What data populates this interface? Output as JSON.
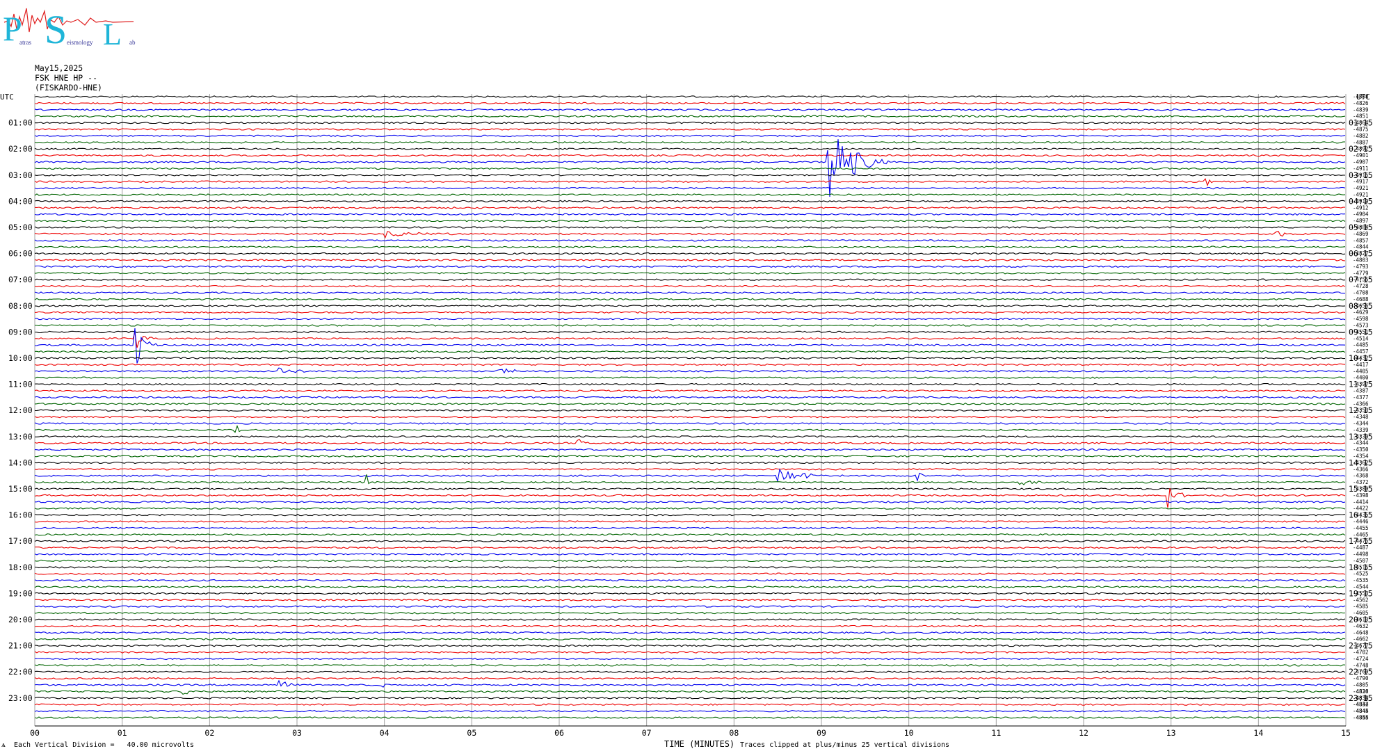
{
  "logo": {
    "big_letters": [
      "P",
      "S",
      "L"
    ],
    "small_words": [
      "atras",
      "eismology",
      "ab"
    ],
    "colors": {
      "letters": "#1fb5d8",
      "squiggle": "#e02020"
    }
  },
  "header": {
    "date": "May15,2025",
    "channel": "FSK HNE HP --",
    "station": "(FISKARDO-HNE)"
  },
  "footer": {
    "corner_mark": "ѧ",
    "vertical_division": "Each Vertical Division =   40.00 microvolts",
    "x_axis_label": "TIME (MINUTES)",
    "clip_note": "Traces clipped at plus/minus 25 vertical divisions"
  },
  "chart_data": {
    "type": "line",
    "title": "",
    "xlabel": "TIME (MINUTES)",
    "ylabel": "",
    "xlim": [
      0,
      15
    ],
    "x_ticks": [
      "00",
      "01",
      "02",
      "03",
      "04",
      "05",
      "06",
      "07",
      "08",
      "09",
      "10",
      "11",
      "12",
      "13",
      "14",
      "15"
    ],
    "grid": true,
    "left_axis_title": "UTC",
    "right_axis_title": "UTC",
    "left_hour_labels": [
      "01:00",
      "02:00",
      "03:00",
      "04:00",
      "05:00",
      "06:00",
      "07:00",
      "08:00",
      "09:00",
      "10:00",
      "11:00",
      "12:00",
      "13:00",
      "14:00",
      "15:00",
      "16:00",
      "17:00",
      "18:00",
      "19:00",
      "20:00",
      "21:00",
      "22:00",
      "23:00"
    ],
    "right_hour_labels": [
      "01:15",
      "02:15",
      "03:15",
      "04:15",
      "05:15",
      "06:15",
      "07:15",
      "08:15",
      "09:15",
      "10:15",
      "11:15",
      "12:15",
      "13:15",
      "14:15",
      "15:15",
      "16:15",
      "17:15",
      "18:15",
      "19:15",
      "20:15",
      "21:15",
      "22:15",
      "23:15"
    ],
    "trace_count": 96,
    "trace_colors": [
      "#000000",
      "#ee0000",
      "#0000ee",
      "#006400"
    ],
    "trace_offsets": [
      "-4808",
      "-4826",
      "-4839",
      "-4851",
      "-4864",
      "-4875",
      "-4882",
      "-4887",
      "-4892",
      "-4901",
      "-4907",
      "-4911",
      "-4915",
      "-4917",
      "-4921",
      "-4921",
      "-4919",
      "-4912",
      "-4904",
      "-4897",
      "-4884",
      "-4869",
      "-4857",
      "-4844",
      "-4827",
      "-4803",
      "-4793",
      "-4779",
      "-4755",
      "-4728",
      "-4708",
      "-4688",
      "-4656",
      "-4629",
      "-4598",
      "-4573",
      "-4551",
      "-4514",
      "-4485",
      "-4457",
      "-4432",
      "-4417",
      "-4405",
      "-4400",
      "-4397",
      "-4387",
      "-4377",
      "-4366",
      "-4353",
      "-4348",
      "-4344",
      "-4339",
      "-4339",
      "-4344",
      "-4350",
      "-4354",
      "-4362",
      "-4366",
      "-4368",
      "-4372",
      "-4380",
      "-4398",
      "-4414",
      "-4422",
      "-4435",
      "-4446",
      "-4455",
      "-4465",
      "-4475",
      "-4487",
      "-4498",
      "-4507",
      "-4515",
      "-4525",
      "-4535",
      "-4544",
      "-4553",
      "-4562",
      "-4585",
      "-4605",
      "-4613",
      "-4632",
      "-4648",
      "-4662",
      "-4677",
      "-4702",
      "-4724",
      "-4748",
      "-4769",
      "-4790",
      "-4805",
      "-4820",
      "-4834",
      "-4842",
      "-4845",
      "-4845"
    ],
    "footer_offsets": [
      "-4836",
      "-4831",
      "-4834",
      "-4844",
      "-4854"
    ],
    "events": [
      {
        "trace": 10,
        "minute": 9.08,
        "amplitude": 70,
        "duration": 0.7,
        "note": "large event"
      },
      {
        "trace": 38,
        "minute": 1.15,
        "amplitude": 38,
        "duration": 0.25
      },
      {
        "trace": 37,
        "minute": 1.15,
        "amplitude": 18,
        "duration": 0.2
      },
      {
        "trace": 21,
        "minute": 14.2,
        "amplitude": 14,
        "duration": 0.2
      },
      {
        "trace": 21,
        "minute": 4.0,
        "amplitude": 5,
        "duration": 1.2
      },
      {
        "trace": 53,
        "minute": 6.2,
        "amplitude": 10,
        "duration": 0.15
      },
      {
        "trace": 58,
        "minute": 8.5,
        "amplitude": 12,
        "duration": 0.8
      },
      {
        "trace": 58,
        "minute": 10.1,
        "amplitude": 12,
        "duration": 0.1
      },
      {
        "trace": 61,
        "minute": 12.95,
        "amplitude": 28,
        "duration": 0.25
      },
      {
        "trace": 59,
        "minute": 11.25,
        "amplitude": 5,
        "duration": 0.6
      },
      {
        "trace": 51,
        "minute": 2.3,
        "amplitude": 9,
        "duration": 0.2
      },
      {
        "trace": 42,
        "minute": 2.8,
        "amplitude": 6,
        "duration": 0.6
      },
      {
        "trace": 42,
        "minute": 5.3,
        "amplitude": 7,
        "duration": 0.4
      },
      {
        "trace": 91,
        "minute": 1.7,
        "amplitude": 7,
        "duration": 0.2
      },
      {
        "trace": 90,
        "minute": 2.8,
        "amplitude": 8,
        "duration": 0.25
      },
      {
        "trace": 90,
        "minute": 3.9,
        "amplitude": 4,
        "duration": 0.4
      },
      {
        "trace": 13,
        "minute": 13.4,
        "amplitude": 8,
        "duration": 0.1
      },
      {
        "trace": 59,
        "minute": 3.8,
        "amplitude": 14,
        "duration": 0.05
      }
    ]
  }
}
